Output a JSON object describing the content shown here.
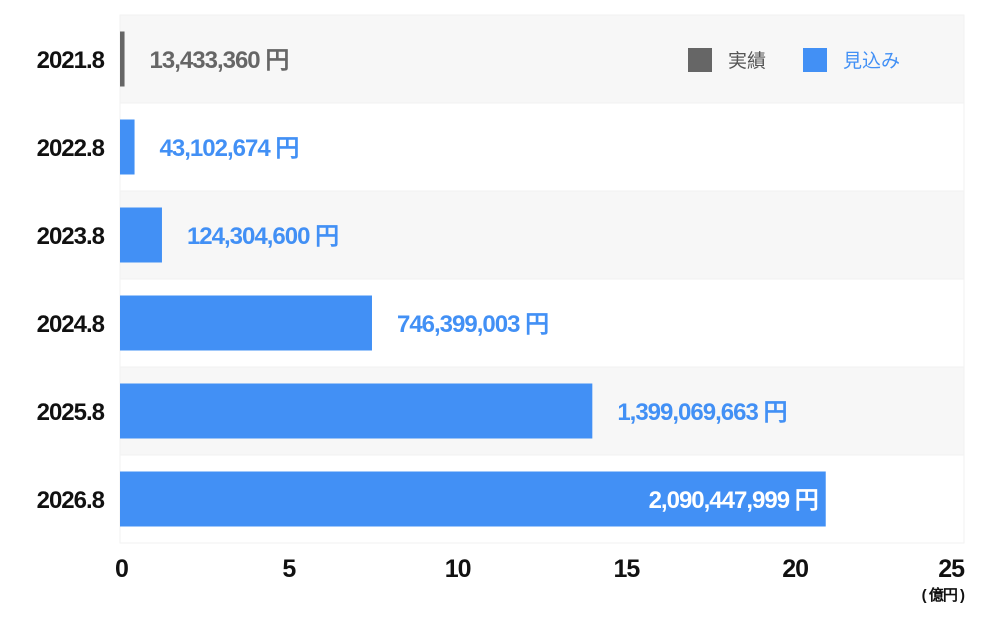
{
  "chart_data": {
    "type": "bar",
    "orientation": "horizontal",
    "categories": [
      "2021.8",
      "2022.8",
      "2023.8",
      "2024.8",
      "2025.8",
      "2026.8"
    ],
    "values": [
      13433360,
      43102674,
      124304600,
      746399003,
      1399069663,
      2090447999
    ],
    "value_labels": [
      "13,433,360 円",
      "43,102,674 円",
      "124,304,600 円",
      "746,399,003 円",
      "1,399,069,663 円",
      "2,090,447,999 円"
    ],
    "bar_types": [
      "actual",
      "forecast",
      "forecast",
      "forecast",
      "forecast",
      "forecast"
    ],
    "xlim": [
      0,
      25
    ],
    "xticks": [
      "0",
      "5",
      "10",
      "15",
      "20",
      "25"
    ],
    "x_unit_label": "( 億円 )",
    "x_unit_divisor": 100000000,
    "legend": {
      "placement": "top-right",
      "entries": [
        {
          "key": "actual",
          "label": "実績",
          "color": "#666666"
        },
        {
          "key": "forecast",
          "label": "見込み",
          "color": "#4290f5"
        }
      ]
    },
    "colors": {
      "actual": "#666666",
      "forecast": "#4290f5",
      "band": "#f7f7f7"
    }
  }
}
